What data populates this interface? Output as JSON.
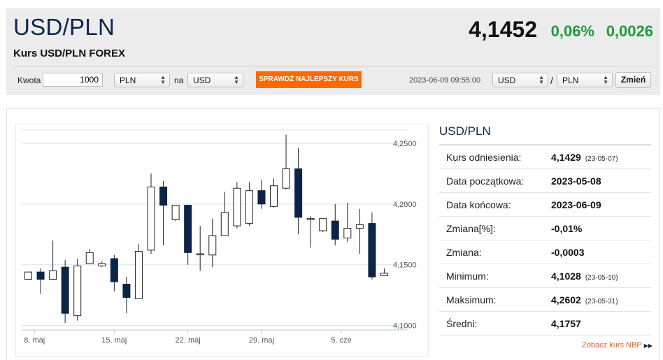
{
  "header": {
    "pair": "USD/PLN",
    "subtitle": "Kurs USD/PLN FOREX",
    "rate": "4,1452",
    "change_pct": "0,06%",
    "change_abs": "0,0026",
    "up_color": "#1f9a3c"
  },
  "converter": {
    "amount_label": "Kwota",
    "amount_value": "1000",
    "from_currency": "PLN",
    "to_label": "na",
    "to_currency": "USD",
    "best_rate_button": "SPRAWDŹ NAJLEPSZY KURS",
    "datetime": "2023-06-09 09:55:00",
    "pair_base": "USD",
    "pair_sep": "/",
    "pair_quote": "PLN",
    "swap_button": "Zmień"
  },
  "side": {
    "title": "USD/PLN",
    "stats": [
      {
        "label": "Kurs odniesienia:",
        "value": "4,1429",
        "date": "(23-05-07)"
      },
      {
        "label": "Data początkowa:",
        "value": "2023-05-08",
        "date": ""
      },
      {
        "label": "Data końcowa:",
        "value": "2023-06-09",
        "date": ""
      },
      {
        "label": "Zmiana[%]:",
        "value": "-0,01%",
        "date": ""
      },
      {
        "label": "Zmiana:",
        "value": "-0,0003",
        "date": ""
      },
      {
        "label": "Minimum:",
        "value": "4,1028",
        "date": "(23-05-10)"
      },
      {
        "label": "Maksimum:",
        "value": "4,2602",
        "date": "(23-05-31)"
      },
      {
        "label": "Średni:",
        "value": "4,1757",
        "date": ""
      }
    ],
    "nbp_link": "Zobacz kurs NBP"
  },
  "chart_data": {
    "type": "candlestick",
    "y_ticks": [
      "4,1000",
      "4,1500",
      "4,2000",
      "4,2500"
    ],
    "y_tick_values": [
      4.1,
      4.15,
      4.2,
      4.25
    ],
    "ylim": [
      4.0963,
      4.2609
    ],
    "x_tick_labels": [
      "8. maj",
      "15. maj",
      "22. maj",
      "29. maj",
      "5. cze"
    ],
    "x_tick_index": [
      0.5,
      7.0,
      13.0,
      19.0,
      25.5
    ],
    "up_color": "#ffffff",
    "down_color": "#0c2448",
    "candles": [
      {
        "o": 4.138,
        "h": 4.144,
        "l": 4.138,
        "c": 4.144
      },
      {
        "o": 4.144,
        "h": 4.147,
        "l": 4.126,
        "c": 4.138
      },
      {
        "o": 4.138,
        "h": 4.17,
        "l": 4.138,
        "c": 4.145
      },
      {
        "o": 4.148,
        "h": 4.154,
        "l": 4.102,
        "c": 4.11
      },
      {
        "o": 4.108,
        "h": 4.155,
        "l": 4.104,
        "c": 4.149
      },
      {
        "o": 4.151,
        "h": 4.163,
        "l": 4.151,
        "c": 4.16
      },
      {
        "o": 4.149,
        "h": 4.153,
        "l": 4.148,
        "c": 4.151
      },
      {
        "o": 4.155,
        "h": 4.158,
        "l": 4.128,
        "c": 4.136
      },
      {
        "o": 4.134,
        "h": 4.14,
        "l": 4.11,
        "c": 4.123
      },
      {
        "o": 4.122,
        "h": 4.167,
        "l": 4.122,
        "c": 4.161
      },
      {
        "o": 4.162,
        "h": 4.225,
        "l": 4.159,
        "c": 4.214
      },
      {
        "o": 4.214,
        "h": 4.219,
        "l": 4.166,
        "c": 4.199
      },
      {
        "o": 4.187,
        "h": 4.199,
        "l": 4.186,
        "c": 4.199
      },
      {
        "o": 4.199,
        "h": 4.199,
        "l": 4.15,
        "c": 4.16
      },
      {
        "o": 4.159,
        "h": 4.182,
        "l": 4.145,
        "c": 4.159
      },
      {
        "o": 4.158,
        "h": 4.188,
        "l": 4.148,
        "c": 4.174
      },
      {
        "o": 4.174,
        "h": 4.21,
        "l": 4.174,
        "c": 4.193
      },
      {
        "o": 4.182,
        "h": 4.218,
        "l": 4.18,
        "c": 4.213
      },
      {
        "o": 4.184,
        "h": 4.218,
        "l": 4.182,
        "c": 4.211
      },
      {
        "o": 4.211,
        "h": 4.22,
        "l": 4.196,
        "c": 4.2
      },
      {
        "o": 4.198,
        "h": 4.221,
        "l": 4.197,
        "c": 4.215
      },
      {
        "o": 4.213,
        "h": 4.257,
        "l": 4.212,
        "c": 4.229
      },
      {
        "o": 4.229,
        "h": 4.246,
        "l": 4.175,
        "c": 4.189
      },
      {
        "o": 4.188,
        "h": 4.19,
        "l": 4.164,
        "c": 4.188
      },
      {
        "o": 4.178,
        "h": 4.188,
        "l": 4.177,
        "c": 4.188
      },
      {
        "o": 4.186,
        "h": 4.2,
        "l": 4.166,
        "c": 4.171
      },
      {
        "o": 4.172,
        "h": 4.201,
        "l": 4.169,
        "c": 4.18
      },
      {
        "o": 4.18,
        "h": 4.196,
        "l": 4.159,
        "c": 4.183
      },
      {
        "o": 4.184,
        "h": 4.193,
        "l": 4.138,
        "c": 4.14
      },
      {
        "o": 4.141,
        "h": 4.147,
        "l": 4.141,
        "c": 4.143
      }
    ]
  }
}
